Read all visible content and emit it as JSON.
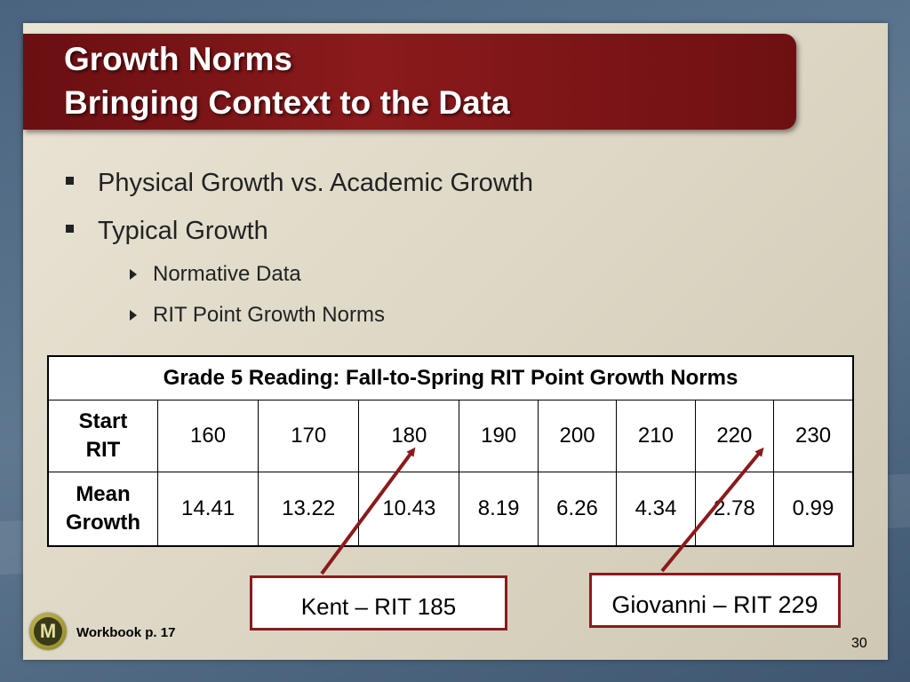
{
  "title": {
    "line1": "Growth Norms",
    "line2": "Bringing Context to the Data"
  },
  "bullets": [
    {
      "text": "Physical Growth vs. Academic Growth"
    },
    {
      "text": "Typical Growth"
    }
  ],
  "sub_bullets": [
    {
      "text": "Normative Data"
    },
    {
      "text": "RIT Point Growth Norms"
    }
  ],
  "table": {
    "caption": "Grade 5 Reading:  Fall-to-Spring RIT Point Growth Norms",
    "rows": [
      {
        "header_line1": "Start",
        "header_line2": "RIT",
        "cells": [
          "160",
          "170",
          "180",
          "190",
          "200",
          "210",
          "220",
          "230"
        ]
      },
      {
        "header_line1": "Mean",
        "header_line2": "Growth",
        "cells": [
          "14.41",
          "13.22",
          "10.43",
          "8.19",
          "6.26",
          "4.34",
          "2.78",
          "0.99"
        ]
      }
    ]
  },
  "callouts": {
    "kent": "Kent – RIT 185",
    "giovanni": "Giovanni – RIT 229"
  },
  "footer": {
    "logo_letter": "M",
    "workbook": "Workbook p. 17",
    "page_number": "30"
  },
  "colors": {
    "title_bar": "#8b1a1c",
    "arrow": "#8b1a1c"
  }
}
